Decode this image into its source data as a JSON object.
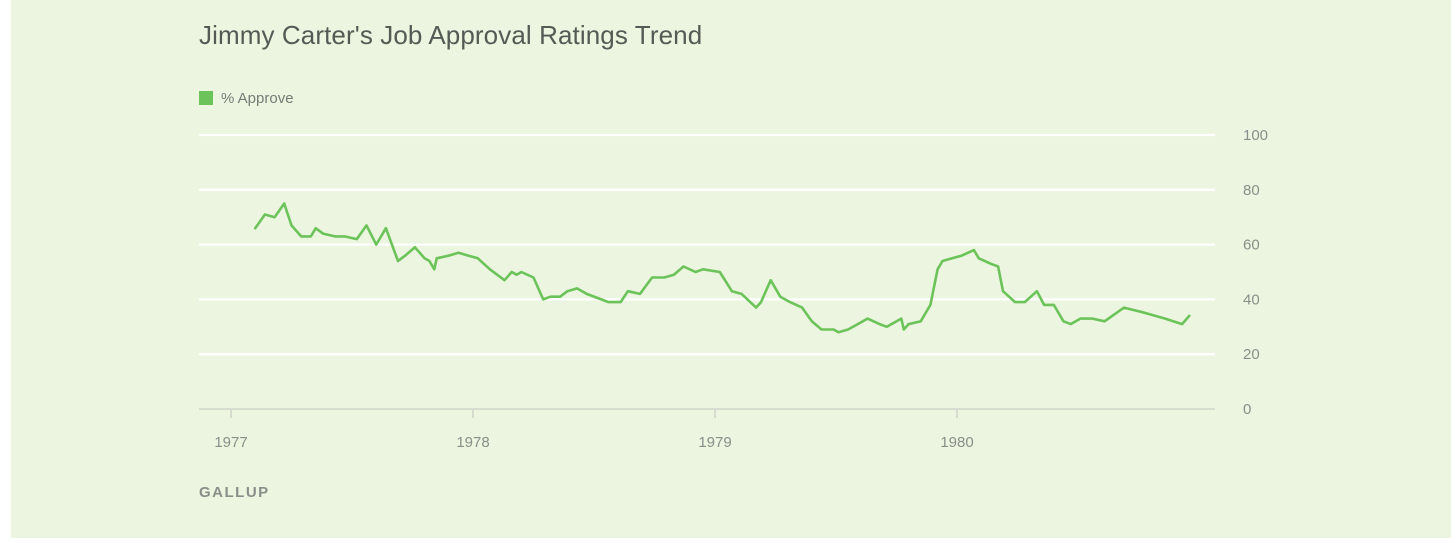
{
  "page": {
    "background": "#ebf5df",
    "source": "GALLUP"
  },
  "chart_data": {
    "type": "line",
    "title": "Jimmy Carter's Job Approval Ratings Trend",
    "xlabel": "",
    "ylabel": "",
    "ylim": [
      0,
      100
    ],
    "xlim": [
      1977.0,
      1981.0
    ],
    "yticks": [
      0,
      20,
      40,
      60,
      80,
      100
    ],
    "xticks": [
      {
        "value": 1977,
        "label": "1977"
      },
      {
        "value": 1978,
        "label": "1978"
      },
      {
        "value": 1979,
        "label": "1979"
      },
      {
        "value": 1980,
        "label": "1980"
      }
    ],
    "grid": true,
    "legend_position": "top-left",
    "series": [
      {
        "name": "% Approve",
        "color": "#6cc35a",
        "points": [
          [
            1977.1,
            66
          ],
          [
            1977.14,
            71
          ],
          [
            1977.18,
            70
          ],
          [
            1977.22,
            75
          ],
          [
            1977.25,
            67
          ],
          [
            1977.29,
            63
          ],
          [
            1977.33,
            63
          ],
          [
            1977.35,
            66
          ],
          [
            1977.38,
            64
          ],
          [
            1977.43,
            63
          ],
          [
            1977.47,
            63
          ],
          [
            1977.52,
            62
          ],
          [
            1977.56,
            67
          ],
          [
            1977.6,
            60
          ],
          [
            1977.64,
            66
          ],
          [
            1977.69,
            54
          ],
          [
            1977.72,
            56
          ],
          [
            1977.76,
            59
          ],
          [
            1977.8,
            55
          ],
          [
            1977.82,
            54
          ],
          [
            1977.84,
            51
          ],
          [
            1977.85,
            55
          ],
          [
            1977.9,
            56
          ],
          [
            1977.94,
            57
          ],
          [
            1977.98,
            56
          ],
          [
            1978.02,
            55
          ],
          [
            1978.07,
            51
          ],
          [
            1978.13,
            47
          ],
          [
            1978.16,
            50
          ],
          [
            1978.18,
            49
          ],
          [
            1978.2,
            50
          ],
          [
            1978.25,
            48
          ],
          [
            1978.29,
            40
          ],
          [
            1978.32,
            41
          ],
          [
            1978.36,
            41
          ],
          [
            1978.39,
            43
          ],
          [
            1978.43,
            44
          ],
          [
            1978.47,
            42
          ],
          [
            1978.53,
            40
          ],
          [
            1978.56,
            39
          ],
          [
            1978.61,
            39
          ],
          [
            1978.64,
            43
          ],
          [
            1978.69,
            42
          ],
          [
            1978.74,
            48
          ],
          [
            1978.79,
            48
          ],
          [
            1978.83,
            49
          ],
          [
            1978.87,
            52
          ],
          [
            1978.92,
            50
          ],
          [
            1978.95,
            51
          ],
          [
            1979.02,
            50
          ],
          [
            1979.07,
            43
          ],
          [
            1979.11,
            42
          ],
          [
            1979.17,
            37
          ],
          [
            1979.19,
            39
          ],
          [
            1979.23,
            47
          ],
          [
            1979.27,
            41
          ],
          [
            1979.31,
            39
          ],
          [
            1979.36,
            37
          ],
          [
            1979.4,
            32
          ],
          [
            1979.44,
            29
          ],
          [
            1979.49,
            29
          ],
          [
            1979.51,
            28
          ],
          [
            1979.55,
            29
          ],
          [
            1979.59,
            31
          ],
          [
            1979.63,
            33
          ],
          [
            1979.68,
            31
          ],
          [
            1979.71,
            30
          ],
          [
            1979.77,
            33
          ],
          [
            1979.78,
            29
          ],
          [
            1979.8,
            31
          ],
          [
            1979.85,
            32
          ],
          [
            1979.89,
            38
          ],
          [
            1979.92,
            51
          ],
          [
            1979.94,
            54
          ],
          [
            1979.98,
            55
          ],
          [
            1980.02,
            56
          ],
          [
            1980.07,
            58
          ],
          [
            1980.09,
            55
          ],
          [
            1980.14,
            53
          ],
          [
            1980.17,
            52
          ],
          [
            1980.19,
            43
          ],
          [
            1980.24,
            39
          ],
          [
            1980.28,
            39
          ],
          [
            1980.33,
            43
          ],
          [
            1980.36,
            38
          ],
          [
            1980.4,
            38
          ],
          [
            1980.44,
            32
          ],
          [
            1980.47,
            31
          ],
          [
            1980.51,
            33
          ],
          [
            1980.56,
            33
          ],
          [
            1980.61,
            32
          ],
          [
            1980.69,
            37
          ],
          [
            1980.78,
            35
          ],
          [
            1980.86,
            33
          ],
          [
            1980.93,
            31
          ],
          [
            1980.96,
            34
          ]
        ]
      }
    ]
  }
}
